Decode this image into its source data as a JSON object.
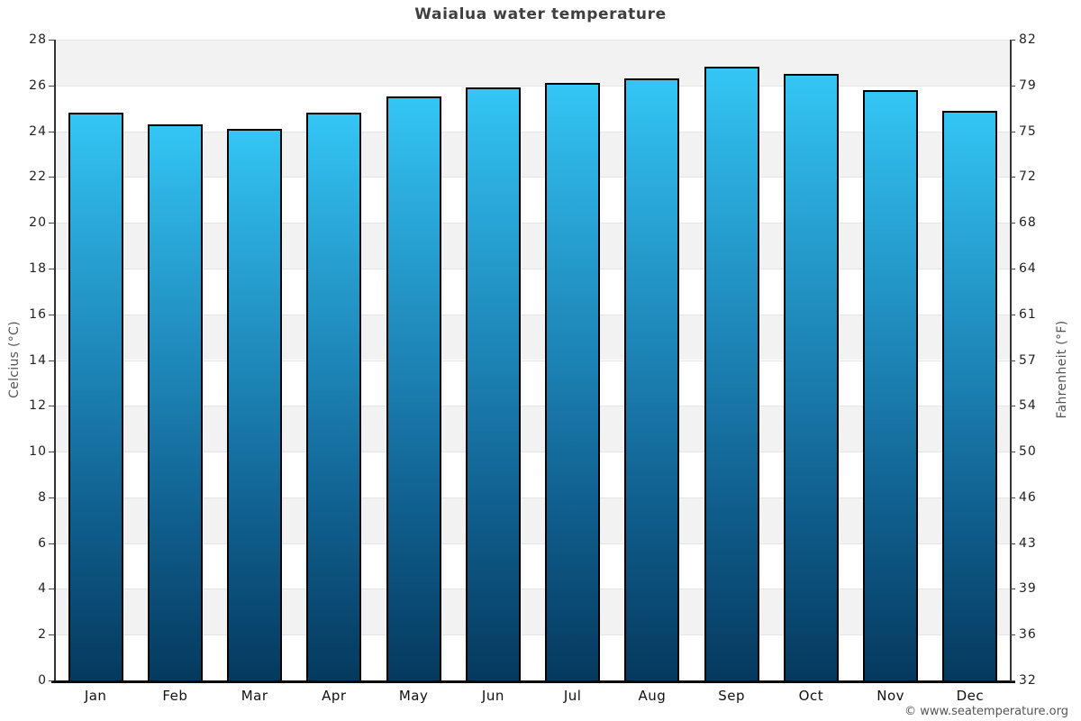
{
  "title": "Waialua water temperature",
  "watermark": "© www.seatemperature.org",
  "chart_data": {
    "type": "bar",
    "title": "Waialua water temperature",
    "categories": [
      "Jan",
      "Feb",
      "Mar",
      "Apr",
      "May",
      "Jun",
      "Jul",
      "Aug",
      "Sep",
      "Oct",
      "Nov",
      "Dec"
    ],
    "values": [
      24.8,
      24.3,
      24.1,
      24.8,
      25.5,
      25.9,
      26.1,
      26.3,
      26.8,
      26.5,
      25.8,
      24.9
    ],
    "ylabel_left": "Celcius (°C)",
    "ylabel_right": "Fahrenheit (°F)",
    "ylim": [
      0,
      28
    ],
    "celsius_ticks": [
      0,
      2,
      4,
      6,
      8,
      10,
      12,
      14,
      16,
      18,
      20,
      22,
      24,
      26,
      28
    ],
    "fahrenheit_tick_labels": [
      "32",
      "36",
      "39",
      "43",
      "46",
      "50",
      "54",
      "57",
      "61",
      "64",
      "68",
      "72",
      "75",
      "79",
      "82"
    ],
    "legend": "none",
    "grid": "alternating horizontal bands every 2°C with light gridlines",
    "colors": {
      "bar_gradient_top": "#34c6f4",
      "bar_gradient_upper": "#2db3e3",
      "bar_gradient_mid": "#1d84b6",
      "bar_gradient_lower": "#10608f",
      "bar_gradient_bottom": "#05395e",
      "bar_border": "#000000",
      "band_gray": "#f2f2f2",
      "band_white": "#ffffff",
      "gridline": "#e5e5e5",
      "axis_line": "#333333",
      "title_text": "#3f3f3f",
      "tick_text": "#222222",
      "axis_title_text": "#555555",
      "watermark_text": "#555555"
    }
  }
}
